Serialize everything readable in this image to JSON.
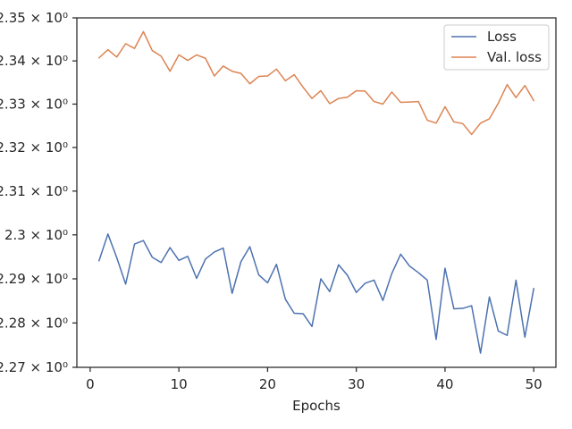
{
  "chart_data": {
    "type": "line",
    "xlabel": "Epochs",
    "ylabel": "",
    "xlim": [
      -1.5,
      52.5
    ],
    "ylim": [
      2.27,
      2.35
    ],
    "yscale": "log",
    "x_ticks": [
      0,
      10,
      20,
      30,
      40,
      50
    ],
    "y_ticks": [
      2.27,
      2.28,
      2.29,
      2.3,
      2.31,
      2.32,
      2.33,
      2.34,
      2.35
    ],
    "y_tick_labels": [
      "2.27 × 10⁰",
      "2.28 × 10⁰",
      "2.29 × 10⁰",
      "2.3 × 10⁰",
      "2.31 × 10⁰",
      "2.32 × 10⁰",
      "2.33 × 10⁰",
      "2.34 × 10⁰",
      "2.35 × 10⁰"
    ],
    "grid": false,
    "legend_position": "top-right",
    "x": [
      1,
      2,
      3,
      4,
      5,
      6,
      7,
      8,
      9,
      10,
      11,
      12,
      13,
      14,
      15,
      16,
      17,
      18,
      19,
      20,
      21,
      22,
      23,
      24,
      25,
      26,
      27,
      28,
      29,
      30,
      31,
      32,
      33,
      34,
      35,
      36,
      37,
      38,
      39,
      40,
      41,
      42,
      43,
      44,
      45,
      46,
      47,
      48,
      49,
      50
    ],
    "series": [
      {
        "name": "Loss",
        "color": "#4c72b0",
        "values": [
          2.2941,
          2.3002,
          2.2948,
          2.2888,
          2.2979,
          2.2987,
          2.2949,
          2.2937,
          2.2971,
          2.2942,
          2.2951,
          2.2901,
          2.2945,
          2.2961,
          2.297,
          2.2867,
          2.2939,
          2.2973,
          2.2909,
          2.2891,
          2.2933,
          2.2854,
          2.2822,
          2.2821,
          2.2792,
          2.29,
          2.2871,
          2.2932,
          2.2908,
          2.2869,
          2.289,
          2.2897,
          2.2851,
          2.2912,
          2.2956,
          2.2929,
          2.2914,
          2.2897,
          2.2763,
          2.2924,
          2.2832,
          2.2833,
          2.2839,
          2.2732,
          2.2859,
          2.2782,
          2.2772,
          2.2897,
          2.2768,
          2.2878
        ]
      },
      {
        "name": "Val. loss",
        "color": "#dd8452",
        "values": [
          2.3407,
          2.3426,
          2.3409,
          2.344,
          2.3429,
          2.3468,
          2.3424,
          2.3411,
          2.3376,
          2.3414,
          2.3401,
          2.3414,
          2.3406,
          2.3365,
          2.3388,
          2.3376,
          2.3371,
          2.3347,
          2.3364,
          2.3365,
          2.3381,
          2.3354,
          2.3368,
          2.3339,
          2.3313,
          2.3331,
          2.3301,
          2.3313,
          2.3316,
          2.3331,
          2.333,
          2.3306,
          2.33,
          2.3328,
          2.3304,
          2.3305,
          2.3306,
          2.3263,
          2.3256,
          2.3294,
          2.3259,
          2.3255,
          2.323,
          2.3256,
          2.3266,
          2.3302,
          2.3345,
          2.3315,
          2.3343,
          2.3308
        ]
      }
    ]
  }
}
